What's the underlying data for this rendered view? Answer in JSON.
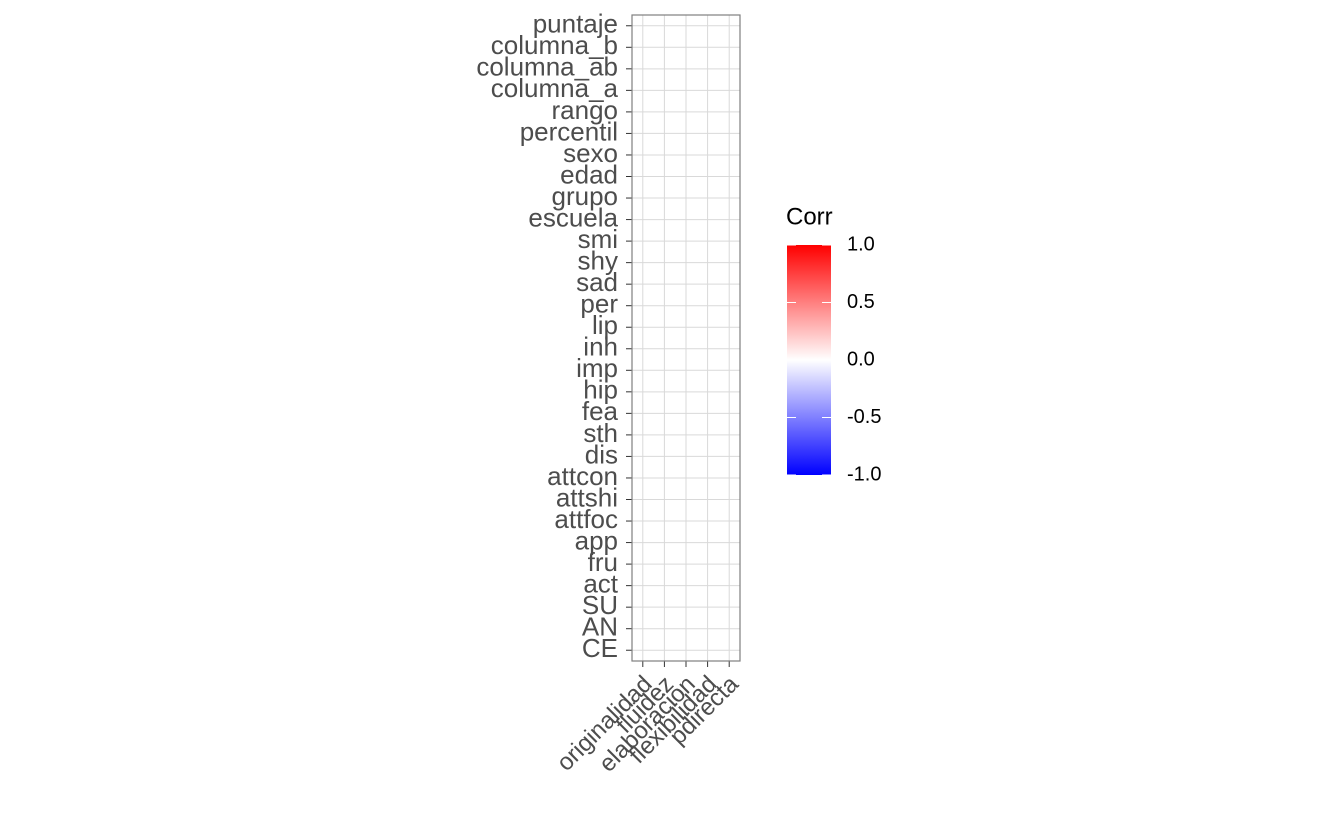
{
  "chart_data": {
    "type": "heatmap",
    "x_categories": [
      "originalidad",
      "fluidez",
      "elaboracion",
      "flexibilidad",
      "pdirecta"
    ],
    "y_categories": [
      "puntaje",
      "columna_b",
      "columna_ab",
      "columna_a",
      "rango",
      "percentil",
      "sexo",
      "edad",
      "grupo",
      "escuela",
      "smi",
      "shy",
      "sad",
      "per",
      "lip",
      "inh",
      "imp",
      "hip",
      "fea",
      "sth",
      "dis",
      "attcon",
      "attshi",
      "attfoc",
      "app",
      "fru",
      "act",
      "SU",
      "AN",
      "CE"
    ],
    "grid": true,
    "legend": {
      "title": "Corr",
      "position": "right",
      "colors": [
        "#0000ff",
        "#ffffff",
        "#ff0000"
      ],
      "limits": [
        -1,
        1
      ],
      "ticks": [
        {
          "value": 1,
          "label": "1.0"
        },
        {
          "value": 0.5,
          "label": "0.5"
        },
        {
          "value": 0,
          "label": "0.0"
        },
        -0.5,
        {
          "value": -1,
          "label": "-1.0"
        }
      ]
    }
  }
}
